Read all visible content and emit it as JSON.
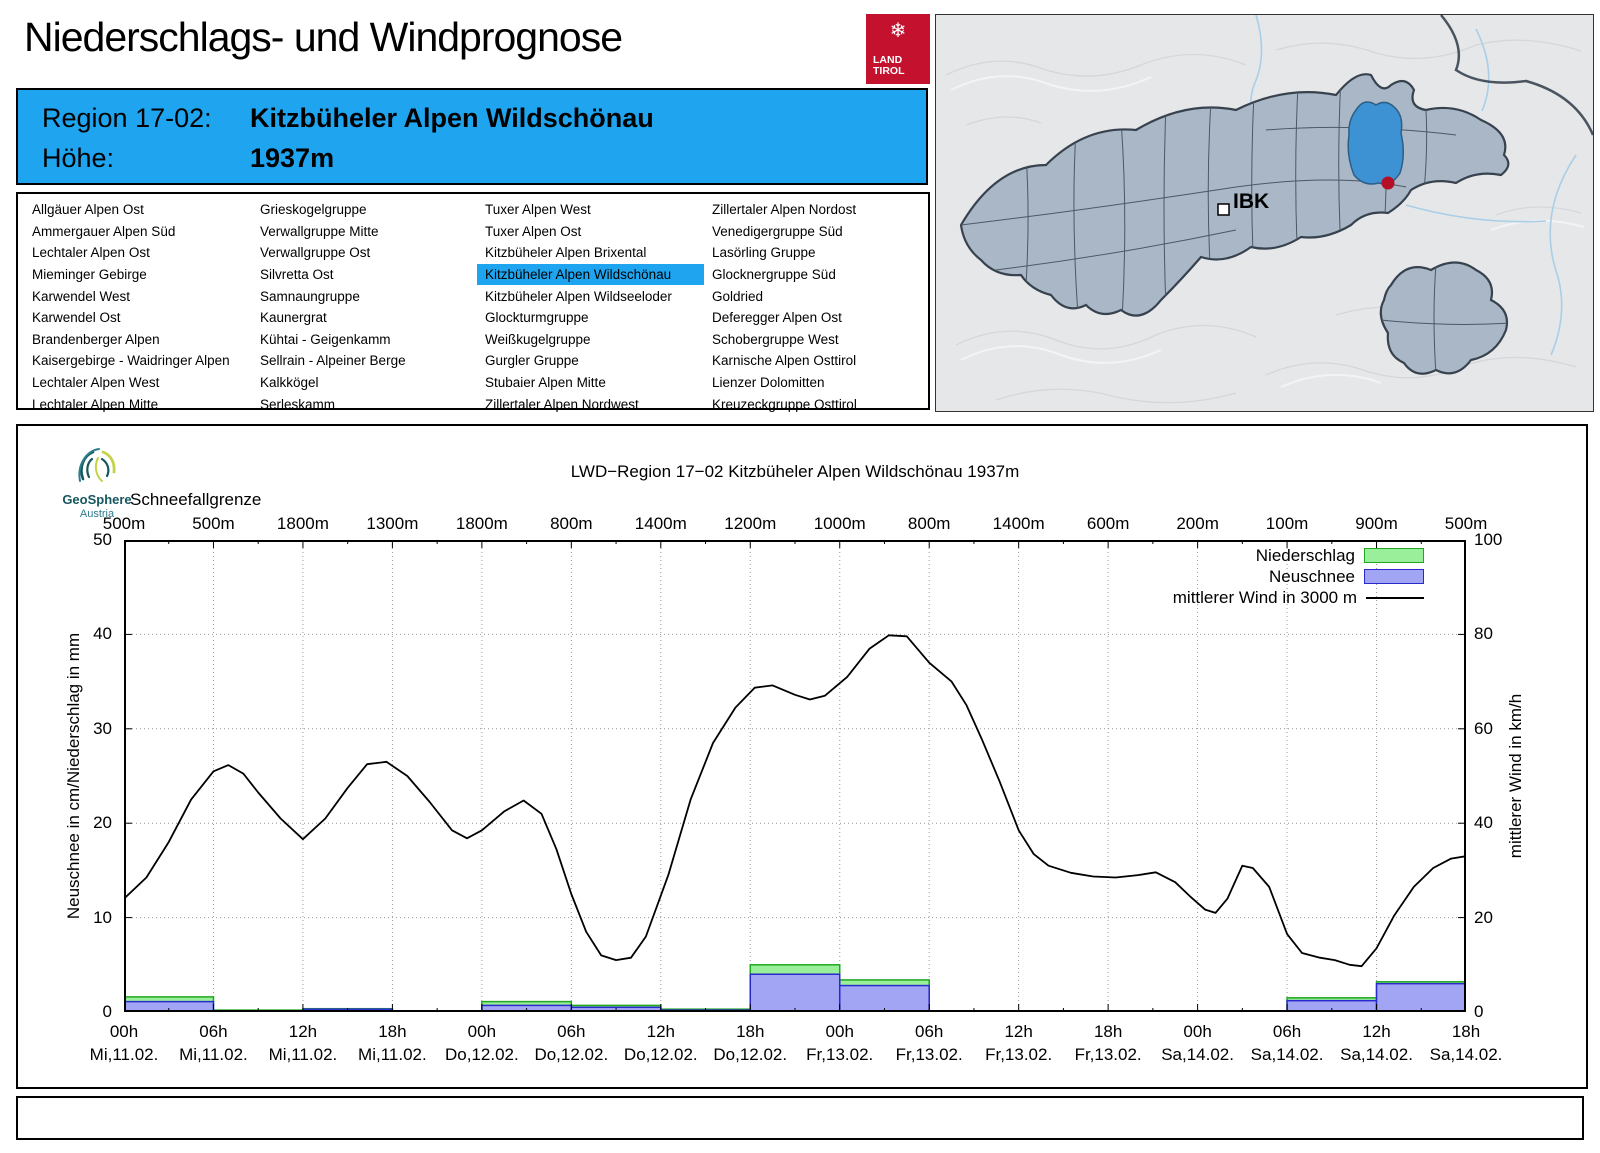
{
  "header": {
    "title": "Niederschlags- und Windprognose",
    "logo": {
      "line1": "LAND",
      "line2": "TIROL",
      "snowflake_icon": "❄"
    }
  },
  "region_box": {
    "region_label": "Region 17-02:",
    "region_name": "Kitzbüheler Alpen Wildschönau",
    "altitude_label": "Höhe:",
    "altitude_value": "1937m"
  },
  "region_list": {
    "selected": "Kitzbüheler Alpen Wildschönau",
    "columns": [
      [
        "Allgäuer Alpen Ost",
        "Ammergauer Alpen Süd",
        "Lechtaler Alpen Ost",
        "Mieminger Gebirge",
        "Karwendel West",
        "Karwendel Ost",
        "Brandenberger Alpen",
        "Kaisergebirge - Waidringer Alpen",
        "Lechtaler Alpen West",
        "Lechtaler Alpen Mitte"
      ],
      [
        "Grieskogelgruppe",
        "Verwallgruppe Mitte",
        "Verwallgruppe Ost",
        "Silvretta Ost",
        "Samnaungruppe",
        "Kaunergrat",
        "Kühtai - Geigenkamm",
        "Sellrain - Alpeiner Berge",
        "Kalkkögel",
        "Serleskamm"
      ],
      [
        "Tuxer Alpen West",
        "Tuxer Alpen Ost",
        "Kitzbüheler Alpen Brixental",
        "Kitzbüheler Alpen Wildschönau",
        "Kitzbüheler Alpen Wildseeloder",
        "Glockturmgruppe",
        "Weißkugelgruppe",
        "Gurgler Gruppe",
        "Stubaier Alpen Mitte",
        "Zillertaler Alpen Nordwest"
      ],
      [
        "Zillertaler Alpen Nordost",
        "Venedigergruppe Süd",
        "Lasörling Gruppe",
        "Glocknergruppe Süd",
        "Goldried",
        "Deferegger Alpen Ost",
        "Schobergruppe West",
        "Karnische Alpen Osttirol",
        "Lienzer Dolomitten",
        "Kreuzeckgruppe Osttirol"
      ]
    ]
  },
  "map": {
    "city_label": "IBK",
    "colors": {
      "terrain": "#E6E7E9",
      "region_fill": "#A9B7C6",
      "region_border": "#37424E",
      "highlight": "#3D92D4",
      "marker_red": "#B40F26",
      "river": "#A9CFE8"
    }
  },
  "geosphere": {
    "name": "GeoSphere",
    "country": "Austria"
  },
  "chart_data": {
    "type": "bar+line",
    "title": "LWD−Region 17−02 Kitzbüheler Alpen Wildschönau 1937m",
    "top_axis": {
      "label": "Schneefallgrenze",
      "values": [
        "500m",
        "500m",
        "1800m",
        "1300m",
        "1800m",
        "800m",
        "1400m",
        "1200m",
        "1000m",
        "800m",
        "1400m",
        "600m",
        "200m",
        "100m",
        "900m",
        "500m"
      ]
    },
    "x_ticks": [
      {
        "time": "00h",
        "date": "Mi,11.02."
      },
      {
        "time": "06h",
        "date": "Mi,11.02."
      },
      {
        "time": "12h",
        "date": "Mi,11.02."
      },
      {
        "time": "18h",
        "date": "Mi,11.02."
      },
      {
        "time": "00h",
        "date": "Do,12.02."
      },
      {
        "time": "06h",
        "date": "Do,12.02."
      },
      {
        "time": "12h",
        "date": "Do,12.02."
      },
      {
        "time": "18h",
        "date": "Do,12.02."
      },
      {
        "time": "00h",
        "date": "Fr,13.02."
      },
      {
        "time": "06h",
        "date": "Fr,13.02."
      },
      {
        "time": "12h",
        "date": "Fr,13.02."
      },
      {
        "time": "18h",
        "date": "Fr,13.02."
      },
      {
        "time": "00h",
        "date": "Sa,14.02."
      },
      {
        "time": "06h",
        "date": "Sa,14.02."
      },
      {
        "time": "12h",
        "date": "Sa,14.02."
      },
      {
        "time": "18h",
        "date": "Sa,14.02."
      }
    ],
    "y_left": {
      "label": "Neuschnee in cm/Niederschlag in mm",
      "range": [
        0,
        50
      ],
      "ticks": [
        0,
        10,
        20,
        30,
        40,
        50
      ]
    },
    "y_right": {
      "label": "mittlerer Wind in km/h",
      "range": [
        0,
        100
      ],
      "ticks": [
        0,
        20,
        40,
        60,
        80,
        100
      ]
    },
    "legend": [
      {
        "label": "Niederschlag",
        "swatch": "green",
        "color": "#9AEF9A"
      },
      {
        "label": "Neuschnee",
        "swatch": "blue",
        "color": "#A2A5F3"
      },
      {
        "label": "mittlerer Wind in 3000 m",
        "swatch": "line",
        "color": "#000000"
      }
    ],
    "bars": {
      "interval_hours": 6,
      "niederschlag_mm": [
        1.6,
        0.2,
        0.35,
        0,
        1.1,
        0.7,
        0.3,
        5.0,
        3.4,
        0,
        0,
        0,
        0,
        1.5,
        3.2
      ],
      "neuschnee_cm": [
        1.1,
        0.1,
        0.3,
        0,
        0.7,
        0.5,
        0.2,
        4.0,
        2.8,
        0,
        0,
        0,
        0,
        1.2,
        3.0
      ]
    },
    "wind_line": {
      "unit": "km/h",
      "points": [
        [
          0,
          24
        ],
        [
          1.5,
          28.5
        ],
        [
          3,
          36
        ],
        [
          4.5,
          45
        ],
        [
          6,
          51
        ],
        [
          7,
          52.3
        ],
        [
          8,
          50.5
        ],
        [
          9,
          46.5
        ],
        [
          10.5,
          41
        ],
        [
          12,
          36.6
        ],
        [
          13.5,
          41
        ],
        [
          15,
          47.5
        ],
        [
          16.3,
          52.5
        ],
        [
          17.6,
          53
        ],
        [
          19,
          50
        ],
        [
          20.5,
          44.5
        ],
        [
          22,
          38.5
        ],
        [
          23,
          36.8
        ],
        [
          24,
          38.5
        ],
        [
          25.5,
          42.5
        ],
        [
          26.8,
          44.8
        ],
        [
          28,
          42
        ],
        [
          29,
          34.5
        ],
        [
          30,
          25
        ],
        [
          31,
          17
        ],
        [
          32,
          12
        ],
        [
          33,
          11
        ],
        [
          34,
          11.5
        ],
        [
          35,
          16
        ],
        [
          36.5,
          29
        ],
        [
          38,
          45
        ],
        [
          39.5,
          57
        ],
        [
          41,
          64.5
        ],
        [
          42.3,
          68.7
        ],
        [
          43.5,
          69.2
        ],
        [
          45,
          67.2
        ],
        [
          46,
          66.2
        ],
        [
          47,
          67
        ],
        [
          48.5,
          71
        ],
        [
          50,
          77
        ],
        [
          51.3,
          79.8
        ],
        [
          52.5,
          79.6
        ],
        [
          54,
          74
        ],
        [
          55.5,
          70
        ],
        [
          56.5,
          65
        ],
        [
          57.5,
          58
        ],
        [
          58.7,
          49
        ],
        [
          60,
          38.5
        ],
        [
          61,
          33.5
        ],
        [
          62,
          31
        ],
        [
          63.5,
          29.5
        ],
        [
          65,
          28.7
        ],
        [
          66.5,
          28.5
        ],
        [
          68,
          29
        ],
        [
          69.2,
          29.6
        ],
        [
          70.5,
          27.5
        ],
        [
          71.5,
          24.5
        ],
        [
          72.5,
          21.7
        ],
        [
          73.2,
          21
        ],
        [
          74,
          24
        ],
        [
          75,
          31
        ],
        [
          75.7,
          30.5
        ],
        [
          76.8,
          26.5
        ],
        [
          78,
          16.5
        ],
        [
          79,
          12.5
        ],
        [
          80.2,
          11.5
        ],
        [
          81.2,
          11
        ],
        [
          82.2,
          10
        ],
        [
          83,
          9.7
        ],
        [
          84,
          13.5
        ],
        [
          85.2,
          20.5
        ],
        [
          86.5,
          26.5
        ],
        [
          87.8,
          30.5
        ],
        [
          89,
          32.5
        ],
        [
          90,
          33
        ]
      ]
    },
    "x_range_hours": [
      0,
      90
    ],
    "grid": true,
    "legend_position": "top-right"
  }
}
